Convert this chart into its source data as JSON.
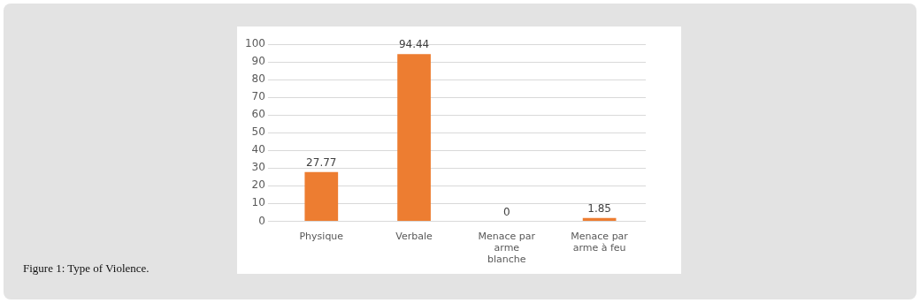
{
  "chart_data": {
    "type": "bar",
    "categories": [
      "Physique",
      "Verbale",
      "Menace par arme blanche",
      "Menace par arme à feu"
    ],
    "values": [
      27.77,
      94.44,
      0,
      1.85
    ],
    "color": "#ed7d31",
    "ylim": [
      0,
      100
    ],
    "yticks": [
      0,
      10,
      20,
      30,
      40,
      50,
      60,
      70,
      80,
      90,
      100
    ],
    "grid": "y",
    "legend": false,
    "data_labels": true,
    "annotations": [
      "Figure 1: Type of Violence."
    ]
  }
}
